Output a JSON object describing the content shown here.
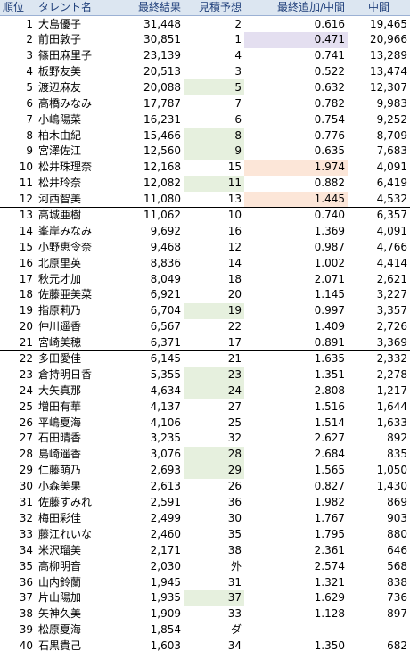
{
  "headers": {
    "rank": "順位",
    "name": "タレント名",
    "final": "最終結果",
    "estimate": "見積予想",
    "ratio": "最終追加/中間",
    "mid": "中間"
  },
  "colors": {
    "header_bg": "#dce6f1",
    "green_highlight": "#e6f0de",
    "orange_highlight": "#fce6d8",
    "purple_highlight": "#e4dff0"
  },
  "rows": [
    {
      "rank": "1",
      "name": "大島優子",
      "final": "31,448",
      "estimate": "2",
      "ratio": "0.616",
      "mid": "19,465"
    },
    {
      "rank": "2",
      "name": "前田敦子",
      "final": "30,851",
      "estimate": "1",
      "ratio": "0.471",
      "mid": "20,966",
      "ratio_hl": "purple"
    },
    {
      "rank": "3",
      "name": "篠田麻里子",
      "final": "23,139",
      "estimate": "4",
      "ratio": "0.741",
      "mid": "13,289"
    },
    {
      "rank": "4",
      "name": "板野友美",
      "final": "20,513",
      "estimate": "3",
      "ratio": "0.522",
      "mid": "13,474"
    },
    {
      "rank": "5",
      "name": "渡辺麻友",
      "final": "20,088",
      "estimate": "5",
      "ratio": "0.632",
      "mid": "12,307",
      "est_hl": true
    },
    {
      "rank": "6",
      "name": "高橋みなみ",
      "final": "17,787",
      "estimate": "7",
      "ratio": "0.782",
      "mid": "9,983"
    },
    {
      "rank": "7",
      "name": "小嶋陽菜",
      "final": "16,231",
      "estimate": "6",
      "ratio": "0.754",
      "mid": "9,252"
    },
    {
      "rank": "8",
      "name": "柏木由紀",
      "final": "15,466",
      "estimate": "8",
      "ratio": "0.776",
      "mid": "8,709",
      "est_hl": true
    },
    {
      "rank": "9",
      "name": "宮澤佐江",
      "final": "12,560",
      "estimate": "9",
      "ratio": "0.635",
      "mid": "7,683",
      "est_hl": true
    },
    {
      "rank": "10",
      "name": "松井珠理奈",
      "final": "12,168",
      "estimate": "15",
      "ratio": "1.974",
      "mid": "4,091",
      "ratio_hl": "orange"
    },
    {
      "rank": "11",
      "name": "松井玲奈",
      "final": "12,082",
      "estimate": "11",
      "ratio": "0.882",
      "mid": "6,419",
      "est_hl": true
    },
    {
      "rank": "12",
      "name": "河西智美",
      "final": "11,080",
      "estimate": "13",
      "ratio": "1.445",
      "mid": "4,532",
      "ratio_hl": "orange",
      "group_end": true
    },
    {
      "rank": "13",
      "name": "高城亜樹",
      "final": "11,062",
      "estimate": "10",
      "ratio": "0.740",
      "mid": "6,357"
    },
    {
      "rank": "14",
      "name": "峯岸みなみ",
      "final": "9,692",
      "estimate": "16",
      "ratio": "1.369",
      "mid": "4,091"
    },
    {
      "rank": "15",
      "name": "小野恵令奈",
      "final": "9,468",
      "estimate": "12",
      "ratio": "0.987",
      "mid": "4,766"
    },
    {
      "rank": "16",
      "name": "北原里英",
      "final": "8,836",
      "estimate": "14",
      "ratio": "1.002",
      "mid": "4,414"
    },
    {
      "rank": "17",
      "name": "秋元才加",
      "final": "8,049",
      "estimate": "18",
      "ratio": "2.071",
      "mid": "2,621"
    },
    {
      "rank": "18",
      "name": "佐藤亜美菜",
      "final": "6,921",
      "estimate": "20",
      "ratio": "1.145",
      "mid": "3,227"
    },
    {
      "rank": "19",
      "name": "指原莉乃",
      "final": "6,704",
      "estimate": "19",
      "ratio": "0.997",
      "mid": "3,357",
      "est_hl": true
    },
    {
      "rank": "20",
      "name": "仲川遥香",
      "final": "6,567",
      "estimate": "22",
      "ratio": "1.409",
      "mid": "2,726"
    },
    {
      "rank": "21",
      "name": "宮崎美穂",
      "final": "6,371",
      "estimate": "17",
      "ratio": "0.891",
      "mid": "3,369",
      "group_end": true
    },
    {
      "rank": "22",
      "name": "多田愛佳",
      "final": "6,145",
      "estimate": "21",
      "ratio": "1.635",
      "mid": "2,332"
    },
    {
      "rank": "23",
      "name": "倉持明日香",
      "final": "5,355",
      "estimate": "23",
      "ratio": "1.351",
      "mid": "2,278",
      "est_hl": true
    },
    {
      "rank": "24",
      "name": "大矢真那",
      "final": "4,634",
      "estimate": "24",
      "ratio": "2.808",
      "mid": "1,217",
      "est_hl": true
    },
    {
      "rank": "25",
      "name": "増田有華",
      "final": "4,137",
      "estimate": "27",
      "ratio": "1.516",
      "mid": "1,644"
    },
    {
      "rank": "26",
      "name": "平嶋夏海",
      "final": "4,106",
      "estimate": "25",
      "ratio": "1.514",
      "mid": "1,633"
    },
    {
      "rank": "27",
      "name": "石田晴香",
      "final": "3,235",
      "estimate": "32",
      "ratio": "2.627",
      "mid": "892"
    },
    {
      "rank": "28",
      "name": "島崎遥香",
      "final": "3,076",
      "estimate": "28",
      "ratio": "2.684",
      "mid": "835",
      "est_hl": true
    },
    {
      "rank": "29",
      "name": "仁藤萌乃",
      "final": "2,693",
      "estimate": "29",
      "ratio": "1.565",
      "mid": "1,050",
      "est_hl": true
    },
    {
      "rank": "30",
      "name": "小森美果",
      "final": "2,613",
      "estimate": "26",
      "ratio": "0.827",
      "mid": "1,430"
    },
    {
      "rank": "31",
      "name": "佐藤すみれ",
      "final": "2,591",
      "estimate": "36",
      "ratio": "1.982",
      "mid": "869"
    },
    {
      "rank": "32",
      "name": "梅田彩佳",
      "final": "2,499",
      "estimate": "30",
      "ratio": "1.767",
      "mid": "903"
    },
    {
      "rank": "33",
      "name": "藤江れいな",
      "final": "2,460",
      "estimate": "35",
      "ratio": "1.795",
      "mid": "880"
    },
    {
      "rank": "34",
      "name": "米沢瑠美",
      "final": "2,171",
      "estimate": "38",
      "ratio": "2.361",
      "mid": "646"
    },
    {
      "rank": "35",
      "name": "高柳明音",
      "final": "2,030",
      "estimate": "外",
      "ratio": "2.574",
      "mid": "568"
    },
    {
      "rank": "36",
      "name": "山内鈴蘭",
      "final": "1,945",
      "estimate": "31",
      "ratio": "1.321",
      "mid": "838"
    },
    {
      "rank": "37",
      "name": "片山陽加",
      "final": "1,935",
      "estimate": "37",
      "ratio": "1.629",
      "mid": "736",
      "est_hl": true
    },
    {
      "rank": "38",
      "name": "矢神久美",
      "final": "1,909",
      "estimate": "33",
      "ratio": "1.128",
      "mid": "897"
    },
    {
      "rank": "39",
      "name": "松原夏海",
      "final": "1,854",
      "estimate": "ダ",
      "ratio": "",
      "mid": ""
    },
    {
      "rank": "40",
      "name": "石黒貴己",
      "final": "1,603",
      "estimate": "34",
      "ratio": "1.350",
      "mid": "682"
    }
  ]
}
